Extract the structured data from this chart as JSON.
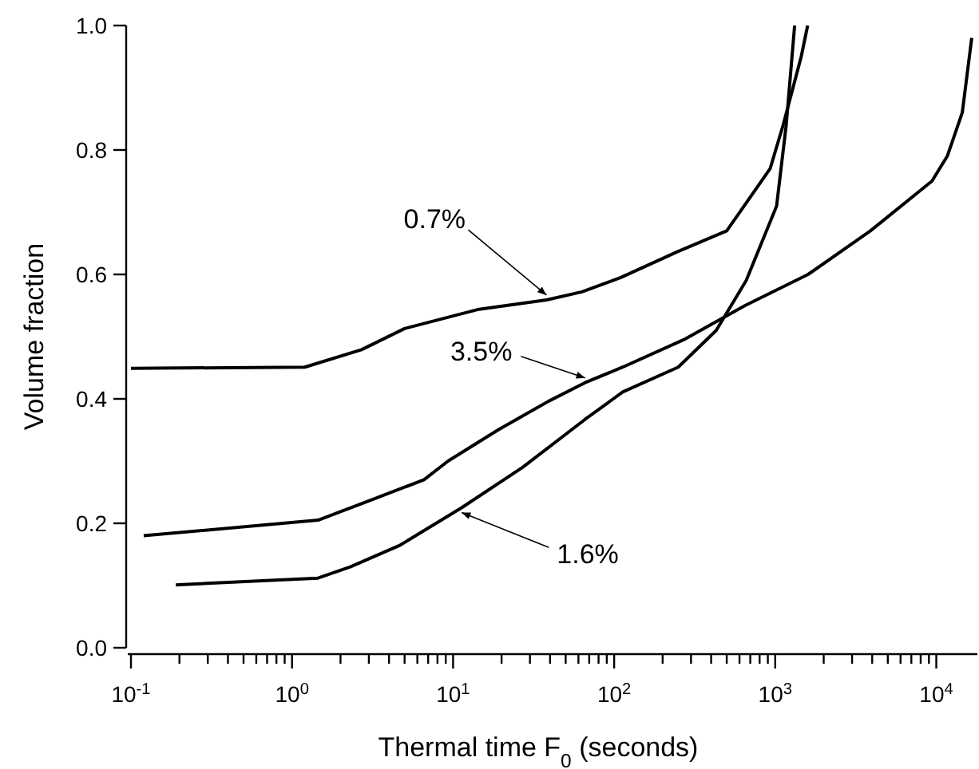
{
  "chart_data": {
    "type": "line",
    "xlabel": "Thermal time F$_{0}$ (seconds)",
    "ylabel": "Volume fraction",
    "log": "x",
    "grid": false,
    "marker": "none",
    "line_style": "solid",
    "xlim": [
      0.1,
      18000
    ],
    "ylim": [
      0,
      1
    ],
    "xticks": [
      {
        "value": 0.1,
        "label": "10$^{-1}$"
      },
      {
        "value": 0.2,
        "label": null
      },
      {
        "value": 0.3,
        "label": null
      },
      {
        "value": 0.4,
        "label": null
      },
      {
        "value": 0.5,
        "label": null
      },
      {
        "value": 0.6,
        "label": null
      },
      {
        "value": 0.7,
        "label": null
      },
      {
        "value": 0.8,
        "label": null
      },
      {
        "value": 0.9,
        "label": null
      },
      {
        "value": 1,
        "label": "10$^{0}$"
      },
      {
        "value": 2,
        "label": null
      },
      {
        "value": 3,
        "label": null
      },
      {
        "value": 4,
        "label": null
      },
      {
        "value": 5,
        "label": null
      },
      {
        "value": 6,
        "label": null
      },
      {
        "value": 7,
        "label": null
      },
      {
        "value": 8,
        "label": null
      },
      {
        "value": 9,
        "label": null
      },
      {
        "value": 10,
        "label": "10$^{1}$"
      },
      {
        "value": 20,
        "label": null
      },
      {
        "value": 30,
        "label": null
      },
      {
        "value": 40,
        "label": null
      },
      {
        "value": 50,
        "label": null
      },
      {
        "value": 60,
        "label": null
      },
      {
        "value": 70,
        "label": null
      },
      {
        "value": 80,
        "label": null
      },
      {
        "value": 90,
        "label": null
      },
      {
        "value": 100,
        "label": "10$^{2}$"
      },
      {
        "value": 200,
        "label": null
      },
      {
        "value": 300,
        "label": null
      },
      {
        "value": 400,
        "label": null
      },
      {
        "value": 500,
        "label": null
      },
      {
        "value": 600,
        "label": null
      },
      {
        "value": 700,
        "label": null
      },
      {
        "value": 800,
        "label": null
      },
      {
        "value": 900,
        "label": null
      },
      {
        "value": 1000,
        "label": "10$^{3}$"
      },
      {
        "value": 2000,
        "label": null
      },
      {
        "value": 3000,
        "label": null
      },
      {
        "value": 4000,
        "label": null
      },
      {
        "value": 5000,
        "label": null
      },
      {
        "value": 6000,
        "label": null
      },
      {
        "value": 7000,
        "label": null
      },
      {
        "value": 8000,
        "label": null
      },
      {
        "value": 9000,
        "label": null
      },
      {
        "value": 10000,
        "label": "10$^{4}$"
      }
    ],
    "yticks": [
      {
        "value": 0,
        "label": "0.0"
      },
      {
        "value": 0.2,
        "label": "0.2"
      },
      {
        "value": 0.4,
        "label": "0.4"
      },
      {
        "value": 0.6,
        "label": "0.6"
      },
      {
        "value": 0.8,
        "label": "0.8"
      },
      {
        "value": 1,
        "label": "1.0"
      }
    ],
    "series": [
      {
        "color": "#000000",
        "x": [
          0.1,
          1.2,
          2.7,
          5,
          14.5,
          38,
          63,
          110,
          245,
          500,
          930,
          1120,
          1450,
          1590
        ],
        "values": [
          0.449,
          0.451,
          0.479,
          0.513,
          0.544,
          0.559,
          0.572,
          0.595,
          0.636,
          0.67,
          0.77,
          0.84,
          0.95,
          1.0
        ]
      },
      {
        "color": "#000000",
        "x": [
          0.12,
          1.45,
          3,
          6.6,
          9.3,
          19,
          39,
          66,
          113,
          270,
          650,
          1600,
          3900,
          9400,
          11700,
          14500,
          16600
        ],
        "values": [
          0.18,
          0.205,
          0.236,
          0.27,
          0.3,
          0.35,
          0.396,
          0.426,
          0.451,
          0.495,
          0.55,
          0.6,
          0.67,
          0.75,
          0.79,
          0.86,
          0.98
        ]
      },
      {
        "color": "#000000",
        "x": [
          0.19,
          1.45,
          2.3,
          4.7,
          11.3,
          27,
          66,
          113,
          250,
          430,
          660,
          1020,
          1170,
          1320
        ],
        "values": [
          0.101,
          0.112,
          0.13,
          0.165,
          0.225,
          0.29,
          0.367,
          0.411,
          0.451,
          0.51,
          0.59,
          0.71,
          0.84,
          1.0
        ]
      }
    ],
    "annotations": [
      {
        "text": "0.7%",
        "x": 38,
        "y": 0.559
      },
      {
        "text": "3.5%",
        "x": 66,
        "y": 0.426
      },
      {
        "text": "1.6%",
        "x": 11.3,
        "y": 0.225
      }
    ]
  }
}
